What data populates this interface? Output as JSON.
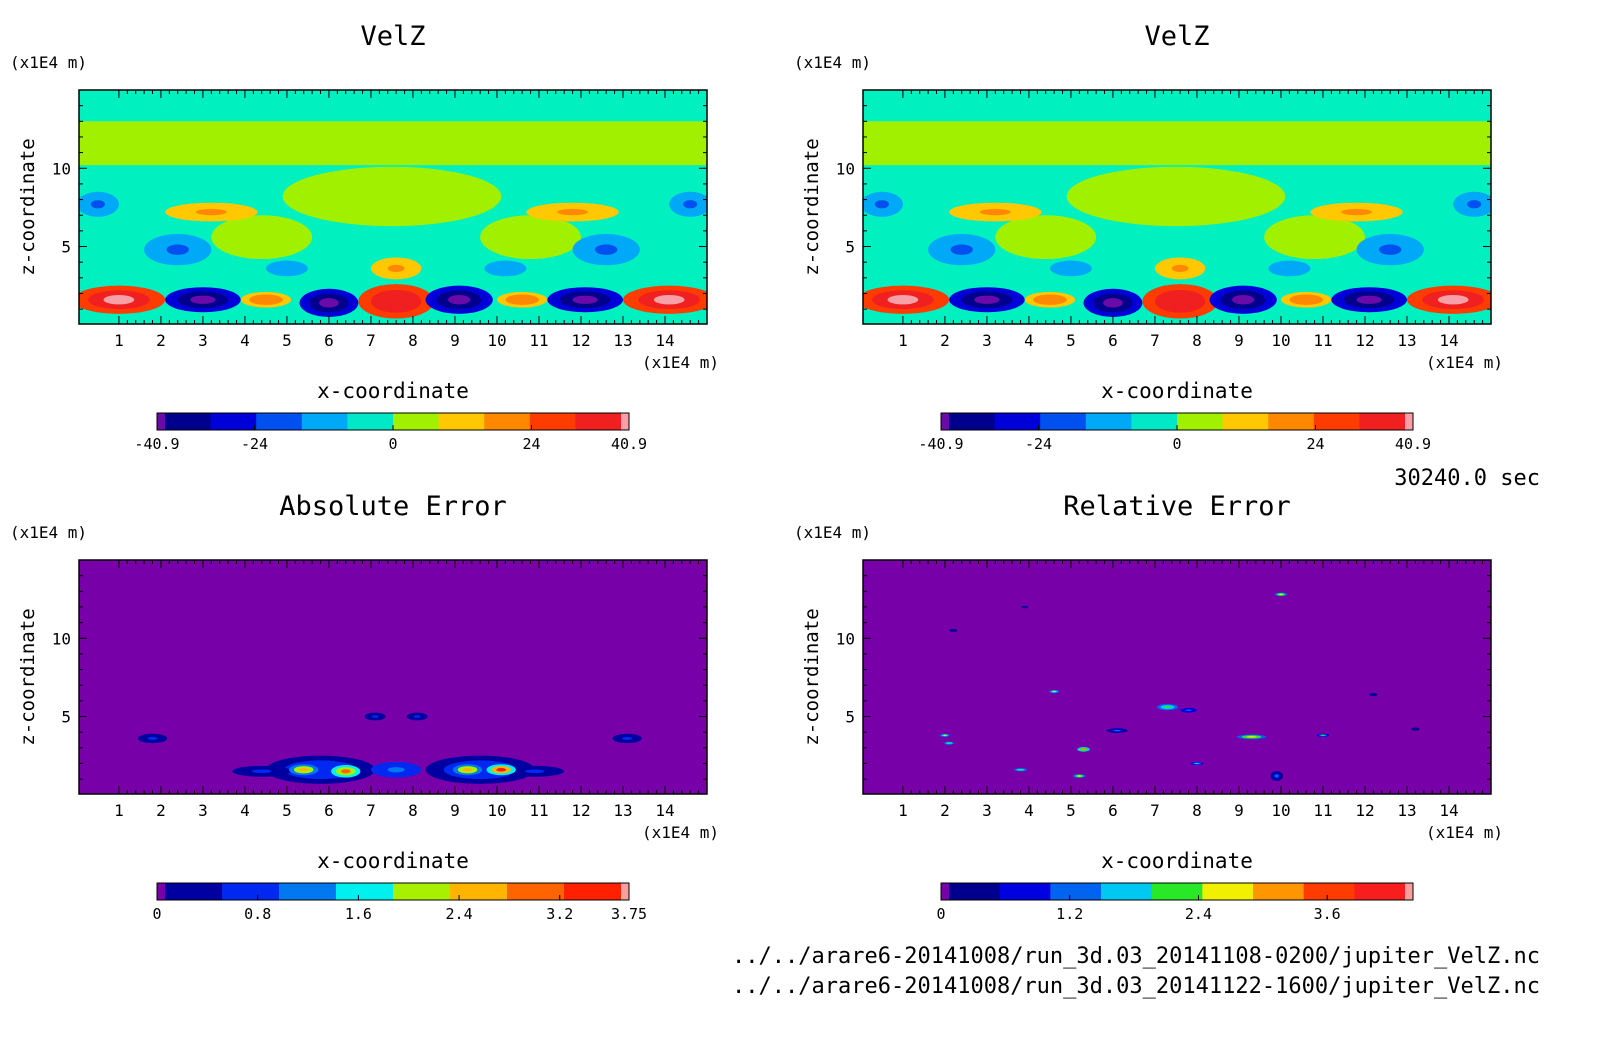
{
  "units": {
    "axis_scale": "(x1E4 m)"
  },
  "time_label": "30240.0 sec",
  "files": [
    "../../arare6-20141008/run_3d.03_20141108-0200/jupiter_VelZ.nc",
    "../../arare6-20141008/run_3d.03_20141122-1600/jupiter_VelZ.nc"
  ],
  "chart_data": [
    {
      "type": "heatmap",
      "title": "VelZ",
      "xlabel": "x-coordinate",
      "ylabel": "z-coordinate",
      "x_ticks": [
        1,
        2,
        3,
        4,
        5,
        6,
        7,
        8,
        9,
        10,
        11,
        12,
        13,
        14
      ],
      "y_ticks": [
        5,
        10
      ],
      "xlim": [
        0.05,
        15.0
      ],
      "ylim": [
        0.05,
        15.0
      ],
      "colorbar": {
        "colors": [
          "#6a0aa8",
          "#00008c",
          "#0000d8",
          "#0050f0",
          "#00a8f8",
          "#00e8c8",
          "#a0f000",
          "#ffc800",
          "#ff8800",
          "#ff3c00",
          "#f02020",
          "#f8a0a8"
        ],
        "tick_labels": [
          "-40.9",
          "-24",
          "0",
          "24",
          "40.9"
        ],
        "tick_values": [
          -40.9,
          -24,
          0,
          24,
          40.9
        ],
        "range": [
          -40.9,
          40.9
        ]
      },
      "background": "#00f0c0",
      "features": [
        {
          "kind": "blob",
          "cx": 3.0,
          "cy": 1.6,
          "rx": 0.9,
          "ry": 0.8,
          "level": -40
        },
        {
          "kind": "blob",
          "cx": 6.0,
          "cy": 1.4,
          "rx": 0.7,
          "ry": 0.9,
          "level": -38
        },
        {
          "kind": "blob",
          "cx": 9.1,
          "cy": 1.6,
          "rx": 0.8,
          "ry": 0.9,
          "level": -38
        },
        {
          "kind": "blob",
          "cx": 12.1,
          "cy": 1.6,
          "rx": 0.9,
          "ry": 0.8,
          "level": -40
        },
        {
          "kind": "blob",
          "cx": 1.0,
          "cy": 1.6,
          "rx": 1.1,
          "ry": 0.9,
          "level": 38
        },
        {
          "kind": "blob",
          "cx": 14.1,
          "cy": 1.6,
          "rx": 1.1,
          "ry": 0.9,
          "level": 38
        },
        {
          "kind": "blob",
          "cx": 7.6,
          "cy": 1.5,
          "rx": 0.9,
          "ry": 1.1,
          "level": 34
        },
        {
          "kind": "blob",
          "cx": 4.5,
          "cy": 1.6,
          "rx": 0.6,
          "ry": 0.5,
          "level": 20
        },
        {
          "kind": "blob",
          "cx": 10.6,
          "cy": 1.6,
          "rx": 0.6,
          "ry": 0.5,
          "level": 20
        },
        {
          "kind": "blob",
          "cx": 2.4,
          "cy": 4.8,
          "rx": 0.8,
          "ry": 1.0,
          "level": -16
        },
        {
          "kind": "blob",
          "cx": 12.6,
          "cy": 4.8,
          "rx": 0.8,
          "ry": 1.0,
          "level": -16
        },
        {
          "kind": "blob",
          "cx": 3.2,
          "cy": 7.2,
          "rx": 1.1,
          "ry": 0.6,
          "level": 14
        },
        {
          "kind": "blob",
          "cx": 11.8,
          "cy": 7.2,
          "rx": 1.1,
          "ry": 0.6,
          "level": 14
        },
        {
          "kind": "blob",
          "cx": 0.5,
          "cy": 7.7,
          "rx": 0.5,
          "ry": 0.8,
          "level": -16
        },
        {
          "kind": "blob",
          "cx": 14.6,
          "cy": 7.7,
          "rx": 0.5,
          "ry": 0.8,
          "level": -16
        },
        {
          "kind": "blob",
          "cx": 7.6,
          "cy": 3.6,
          "rx": 0.6,
          "ry": 0.7,
          "level": 14
        },
        {
          "kind": "blob",
          "cx": 5.0,
          "cy": 3.6,
          "rx": 0.5,
          "ry": 0.5,
          "level": -12
        },
        {
          "kind": "blob",
          "cx": 10.2,
          "cy": 3.6,
          "rx": 0.5,
          "ry": 0.5,
          "level": -12
        },
        {
          "kind": "band",
          "cy": 11.6,
          "ry": 1.4,
          "level": 6
        },
        {
          "kind": "blob",
          "cx": 7.5,
          "cy": 8.2,
          "rx": 2.6,
          "ry": 1.9,
          "level": 0
        },
        {
          "kind": "blob",
          "cx": 4.4,
          "cy": 5.6,
          "rx": 1.2,
          "ry": 1.4,
          "level": 6
        },
        {
          "kind": "blob",
          "cx": 10.8,
          "cy": 5.6,
          "rx": 1.2,
          "ry": 1.4,
          "level": 6
        }
      ]
    },
    {
      "type": "heatmap",
      "title": "VelZ",
      "xlabel": "x-coordinate",
      "ylabel": "z-coordinate",
      "x_ticks": [
        1,
        2,
        3,
        4,
        5,
        6,
        7,
        8,
        9,
        10,
        11,
        12,
        13,
        14
      ],
      "y_ticks": [
        5,
        10
      ],
      "xlim": [
        0.05,
        15.0
      ],
      "ylim": [
        0.05,
        15.0
      ],
      "colorbar": {
        "colors": [
          "#6a0aa8",
          "#00008c",
          "#0000d8",
          "#0050f0",
          "#00a8f8",
          "#00e8c8",
          "#a0f000",
          "#ffc800",
          "#ff8800",
          "#ff3c00",
          "#f02020",
          "#f8a0a8"
        ],
        "tick_labels": [
          "-40.9",
          "-24",
          "0",
          "24",
          "40.9"
        ],
        "tick_values": [
          -40.9,
          -24,
          0,
          24,
          40.9
        ],
        "range": [
          -40.9,
          40.9
        ]
      },
      "background": "#00f0c0",
      "features": "same_as_0"
    },
    {
      "type": "heatmap",
      "title": "Absolute Error",
      "xlabel": "x-coordinate",
      "ylabel": "z-coordinate",
      "x_ticks": [
        1,
        2,
        3,
        4,
        5,
        6,
        7,
        8,
        9,
        10,
        11,
        12,
        13,
        14
      ],
      "y_ticks": [
        5,
        10
      ],
      "xlim": [
        0.05,
        15.0
      ],
      "ylim": [
        0.05,
        15.0
      ],
      "colorbar": {
        "colors": [
          "#7800a8",
          "#0000a0",
          "#0028f0",
          "#0078f0",
          "#00f0f0",
          "#a8f000",
          "#ffb400",
          "#ff6400",
          "#ff2000",
          "#f8a0a0"
        ],
        "tick_labels": [
          "0",
          "0.8",
          "1.6",
          "2.4",
          "3.2",
          "3.75"
        ],
        "tick_values": [
          0,
          0.8,
          1.6,
          2.4,
          3.2,
          3.75
        ],
        "range": [
          0,
          3.75
        ]
      },
      "background": "#7800a8",
      "features": [
        {
          "kind": "blob",
          "cx": 1.8,
          "cy": 3.6,
          "rx": 0.35,
          "ry": 0.3,
          "level": 0.9
        },
        {
          "kind": "blob",
          "cx": 13.1,
          "cy": 3.6,
          "rx": 0.35,
          "ry": 0.3,
          "level": 0.9
        },
        {
          "kind": "blob",
          "cx": 7.1,
          "cy": 5.0,
          "rx": 0.25,
          "ry": 0.25,
          "level": 0.9
        },
        {
          "kind": "blob",
          "cx": 8.1,
          "cy": 5.0,
          "rx": 0.25,
          "ry": 0.25,
          "level": 0.9
        },
        {
          "kind": "blob",
          "cx": 5.8,
          "cy": 1.6,
          "rx": 1.3,
          "ry": 0.9,
          "level": 1.0
        },
        {
          "kind": "blob",
          "cx": 9.6,
          "cy": 1.6,
          "rx": 1.3,
          "ry": 0.9,
          "level": 1.0
        },
        {
          "kind": "blob",
          "cx": 5.4,
          "cy": 1.6,
          "rx": 0.35,
          "ry": 0.35,
          "level": 2.4
        },
        {
          "kind": "blob",
          "cx": 6.4,
          "cy": 1.5,
          "rx": 0.35,
          "ry": 0.4,
          "level": 2.8
        },
        {
          "kind": "blob",
          "cx": 9.3,
          "cy": 1.6,
          "rx": 0.35,
          "ry": 0.35,
          "level": 2.4
        },
        {
          "kind": "blob",
          "cx": 10.1,
          "cy": 1.6,
          "rx": 0.35,
          "ry": 0.35,
          "level": 3.0
        },
        {
          "kind": "blob",
          "cx": 7.6,
          "cy": 1.6,
          "rx": 0.6,
          "ry": 0.5,
          "level": 1.4
        },
        {
          "kind": "blob",
          "cx": 4.4,
          "cy": 1.5,
          "rx": 0.7,
          "ry": 0.35,
          "level": 0.9
        },
        {
          "kind": "blob",
          "cx": 10.9,
          "cy": 1.5,
          "rx": 0.7,
          "ry": 0.35,
          "level": 0.9
        }
      ]
    },
    {
      "type": "heatmap",
      "title": "Relative Error",
      "xlabel": "x-coordinate",
      "ylabel": "z-coordinate",
      "x_ticks": [
        1,
        2,
        3,
        4,
        5,
        6,
        7,
        8,
        9,
        10,
        11,
        12,
        13,
        14
      ],
      "y_ticks": [
        5,
        10
      ],
      "xlim": [
        0.05,
        15.0
      ],
      "ylim": [
        0.05,
        15.0
      ],
      "colorbar": {
        "colors": [
          "#7800a8",
          "#00008c",
          "#0000e0",
          "#0064f0",
          "#00c8f0",
          "#28e828",
          "#f0f000",
          "#ff9600",
          "#ff3c00",
          "#f81e1e",
          "#f8a0a0"
        ],
        "tick_labels": [
          "0",
          "1.2",
          "2.4",
          "3.6"
        ],
        "tick_values": [
          0,
          1.2,
          2.4,
          3.6
        ],
        "range": [
          0,
          4.4
        ]
      },
      "background": "#7800a8",
      "features": [
        {
          "kind": "blob",
          "cx": 10.0,
          "cy": 12.8,
          "rx": 0.15,
          "ry": 0.12,
          "level": 2.6
        },
        {
          "kind": "blob",
          "cx": 2.2,
          "cy": 10.5,
          "rx": 0.1,
          "ry": 0.1,
          "level": 1.0
        },
        {
          "kind": "blob",
          "cx": 3.9,
          "cy": 12.0,
          "rx": 0.08,
          "ry": 0.08,
          "level": 1.0
        },
        {
          "kind": "blob",
          "cx": 4.6,
          "cy": 6.6,
          "rx": 0.12,
          "ry": 0.1,
          "level": 2.5
        },
        {
          "kind": "blob",
          "cx": 7.3,
          "cy": 5.6,
          "rx": 0.25,
          "ry": 0.2,
          "level": 2.3
        },
        {
          "kind": "blob",
          "cx": 7.8,
          "cy": 5.4,
          "rx": 0.2,
          "ry": 0.15,
          "level": 1.5
        },
        {
          "kind": "blob",
          "cx": 2.0,
          "cy": 3.8,
          "rx": 0.12,
          "ry": 0.1,
          "level": 2.5
        },
        {
          "kind": "blob",
          "cx": 2.1,
          "cy": 3.3,
          "rx": 0.12,
          "ry": 0.1,
          "level": 2.3
        },
        {
          "kind": "blob",
          "cx": 5.3,
          "cy": 2.9,
          "rx": 0.15,
          "ry": 0.15,
          "level": 3.0
        },
        {
          "kind": "blob",
          "cx": 3.8,
          "cy": 1.6,
          "rx": 0.15,
          "ry": 0.1,
          "level": 2.2
        },
        {
          "kind": "blob",
          "cx": 5.2,
          "cy": 1.2,
          "rx": 0.15,
          "ry": 0.12,
          "level": 2.8
        },
        {
          "kind": "blob",
          "cx": 9.3,
          "cy": 3.7,
          "rx": 0.35,
          "ry": 0.15,
          "level": 2.6
        },
        {
          "kind": "blob",
          "cx": 11.0,
          "cy": 3.8,
          "rx": 0.15,
          "ry": 0.1,
          "level": 2.0
        },
        {
          "kind": "blob",
          "cx": 6.1,
          "cy": 4.1,
          "rx": 0.25,
          "ry": 0.15,
          "level": 1.2
        },
        {
          "kind": "blob",
          "cx": 8.0,
          "cy": 2.0,
          "rx": 0.15,
          "ry": 0.1,
          "level": 1.8
        },
        {
          "kind": "blob",
          "cx": 9.9,
          "cy": 1.2,
          "rx": 0.15,
          "ry": 0.3,
          "level": 1.3
        },
        {
          "kind": "blob",
          "cx": 12.2,
          "cy": 6.4,
          "rx": 0.1,
          "ry": 0.1,
          "level": 1.0
        },
        {
          "kind": "blob",
          "cx": 13.2,
          "cy": 4.2,
          "rx": 0.1,
          "ry": 0.1,
          "level": 1.0
        }
      ]
    }
  ]
}
